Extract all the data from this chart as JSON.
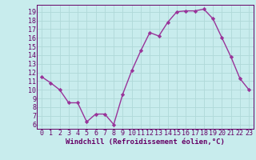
{
  "x": [
    0,
    1,
    2,
    3,
    4,
    5,
    6,
    7,
    8,
    9,
    10,
    11,
    12,
    13,
    14,
    15,
    16,
    17,
    18,
    19,
    20,
    21,
    22,
    23
  ],
  "y": [
    11.5,
    10.8,
    10.0,
    8.5,
    8.5,
    6.3,
    7.2,
    7.2,
    6.0,
    9.5,
    12.2,
    14.5,
    16.6,
    16.2,
    17.8,
    19.0,
    19.1,
    19.1,
    19.3,
    18.2,
    16.0,
    13.8,
    11.3,
    10.0
  ],
  "line_color": "#993399",
  "marker": "D",
  "marker_size": 2.2,
  "linewidth": 1.0,
  "bg_color": "#c8eced",
  "plot_bg_color": "#c8eced",
  "xlabel": "Windchill (Refroidissement éolien,°C)",
  "xlabel_fontsize": 6.5,
  "ylabel_ticks": [
    6,
    7,
    8,
    9,
    10,
    11,
    12,
    13,
    14,
    15,
    16,
    17,
    18,
    19
  ],
  "xtick_labels": [
    "0",
    "1",
    "2",
    "3",
    "4",
    "5",
    "6",
    "7",
    "8",
    "9",
    "10",
    "11",
    "12",
    "13",
    "14",
    "15",
    "16",
    "17",
    "18",
    "19",
    "20",
    "21",
    "22",
    "23"
  ],
  "xlim": [
    -0.5,
    23.5
  ],
  "ylim": [
    5.5,
    19.8
  ],
  "grid_color": "#b0d8d8",
  "tick_fontsize": 6.0,
  "font_color": "#660066"
}
